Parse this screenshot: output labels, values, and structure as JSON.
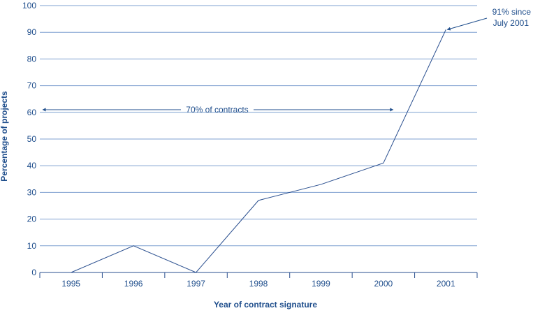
{
  "chart_data": {
    "type": "line",
    "title": "",
    "xlabel": "Year of contract signature",
    "ylabel": "Percentage of projects",
    "categories": [
      "1995",
      "1996",
      "1997",
      "1998",
      "1999",
      "2000",
      "2001"
    ],
    "series": [
      {
        "name": "Percentage of projects",
        "values": [
          0,
          10,
          0,
          27,
          33,
          41,
          91
        ]
      }
    ],
    "ylim": [
      0,
      100
    ],
    "yticks": [
      0,
      10,
      20,
      30,
      40,
      50,
      60,
      70,
      80,
      90,
      100
    ],
    "grid": true,
    "annotations": {
      "range": {
        "text": "70% of contracts",
        "y": 61,
        "from": "1995",
        "to": "2000"
      },
      "point": {
        "line1": "91% since",
        "line2": "July 2001",
        "category": "2001",
        "value": 91
      }
    },
    "colors": {
      "line": "#2a4f8f",
      "grid": "#7fa0d0",
      "text": "#1f4e8c",
      "arrow": "#1f4e8c"
    }
  }
}
